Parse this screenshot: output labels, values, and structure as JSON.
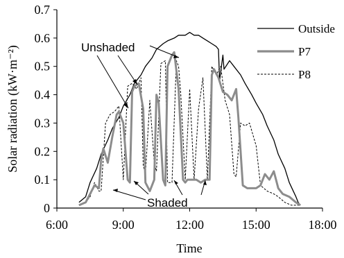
{
  "chart_data": {
    "type": "line",
    "xlabel": "Time",
    "ylabel": "Solar radiation (kW·m⁻²)",
    "x_ticks": [
      "6:00",
      "9:00",
      "12:00",
      "15:00",
      "18:00"
    ],
    "y_ticks": [
      "0",
      "0.1",
      "0.2",
      "0.3",
      "0.4",
      "0.5",
      "0.6",
      "0.7"
    ],
    "xlim_hours": [
      6,
      18
    ],
    "ylim": [
      0,
      0.7
    ],
    "legend": "top-right",
    "grid": false,
    "annotations": [
      "Unshaded",
      "Shaded"
    ],
    "series": [
      {
        "name": "Outside",
        "color": "#000000",
        "style": "solid",
        "x": [
          7.0,
          7.3,
          7.5,
          7.8,
          8.0,
          8.3,
          8.5,
          8.8,
          9.0,
          9.3,
          9.5,
          9.8,
          10.0,
          10.3,
          10.5,
          10.8,
          11.0,
          11.3,
          11.5,
          11.8,
          12.0,
          12.2,
          12.4,
          12.6,
          12.8,
          13.0,
          13.2,
          13.3,
          13.35,
          13.5,
          13.55,
          13.8,
          14.0,
          14.3,
          14.5,
          14.8,
          15.0,
          15.3,
          15.5,
          15.8,
          16.0,
          16.3,
          16.5,
          16.8,
          16.9,
          17.0
        ],
        "y": [
          0.02,
          0.04,
          0.09,
          0.14,
          0.19,
          0.24,
          0.28,
          0.32,
          0.36,
          0.4,
          0.44,
          0.47,
          0.5,
          0.53,
          0.56,
          0.58,
          0.59,
          0.6,
          0.61,
          0.61,
          0.62,
          0.61,
          0.61,
          0.6,
          0.59,
          0.58,
          0.57,
          0.56,
          0.45,
          0.54,
          0.49,
          0.52,
          0.5,
          0.47,
          0.44,
          0.4,
          0.37,
          0.33,
          0.29,
          0.24,
          0.19,
          0.14,
          0.09,
          0.04,
          0.02,
          0.01
        ]
      },
      {
        "name": "P7",
        "color": "#8c8c8c",
        "style": "thick",
        "x": [
          7.0,
          7.3,
          7.5,
          7.7,
          7.9,
          8.0,
          8.1,
          8.3,
          8.5,
          8.7,
          8.8,
          9.0,
          9.2,
          9.3,
          9.4,
          9.5,
          9.7,
          9.9,
          10.0,
          10.2,
          10.4,
          10.5,
          10.6,
          10.8,
          10.9,
          11.0,
          11.2,
          11.3,
          11.5,
          11.7,
          11.8,
          11.9,
          12.0,
          12.2,
          12.3,
          12.5,
          12.7,
          12.9,
          13.0,
          13.1,
          13.3,
          13.5,
          13.7,
          13.9,
          14.1,
          14.2,
          14.4,
          14.6,
          15.0,
          15.2,
          15.4,
          15.6,
          15.8,
          16.0,
          16.2,
          16.5,
          16.8,
          17.0
        ],
        "y": [
          0.01,
          0.02,
          0.05,
          0.08,
          0.07,
          0.17,
          0.21,
          0.16,
          0.25,
          0.33,
          0.34,
          0.3,
          0.1,
          0.09,
          0.41,
          0.43,
          0.44,
          0.35,
          0.09,
          0.06,
          0.1,
          0.4,
          0.37,
          0.1,
          0.08,
          0.5,
          0.54,
          0.55,
          0.42,
          0.1,
          0.09,
          0.1,
          0.1,
          0.1,
          0.1,
          0.09,
          0.1,
          0.1,
          0.47,
          0.49,
          0.46,
          0.41,
          0.4,
          0.38,
          0.42,
          0.32,
          0.08,
          0.07,
          0.07,
          0.08,
          0.12,
          0.1,
          0.13,
          0.07,
          0.05,
          0.04,
          0.02,
          0.01
        ]
      },
      {
        "name": "P8",
        "color": "#000000",
        "style": "dashed",
        "x": [
          7.0,
          7.3,
          7.5,
          7.7,
          7.9,
          8.0,
          8.2,
          8.4,
          8.6,
          8.8,
          9.0,
          9.2,
          9.4,
          9.6,
          9.8,
          9.9,
          10.0,
          10.2,
          10.4,
          10.5,
          10.7,
          10.9,
          11.0,
          11.2,
          11.4,
          11.5,
          11.6,
          11.8,
          12.0,
          12.2,
          12.4,
          12.6,
          12.8,
          13.0,
          13.2,
          13.4,
          13.6,
          13.8,
          14.0,
          14.1,
          14.3,
          14.5,
          14.7,
          15.0,
          15.2,
          15.5,
          15.8,
          16.0,
          16.3,
          16.6,
          17.0
        ],
        "y": [
          0.01,
          0.02,
          0.04,
          0.09,
          0.06,
          0.06,
          0.3,
          0.33,
          0.34,
          0.36,
          0.1,
          0.43,
          0.44,
          0.42,
          0.46,
          0.15,
          0.12,
          0.38,
          0.16,
          0.13,
          0.51,
          0.52,
          0.09,
          0.09,
          0.52,
          0.5,
          0.4,
          0.1,
          0.42,
          0.1,
          0.35,
          0.46,
          0.1,
          0.5,
          0.47,
          0.5,
          0.38,
          0.33,
          0.12,
          0.11,
          0.3,
          0.29,
          0.3,
          0.22,
          0.08,
          0.06,
          0.05,
          0.04,
          0.02,
          0.01,
          0.01
        ]
      }
    ]
  }
}
